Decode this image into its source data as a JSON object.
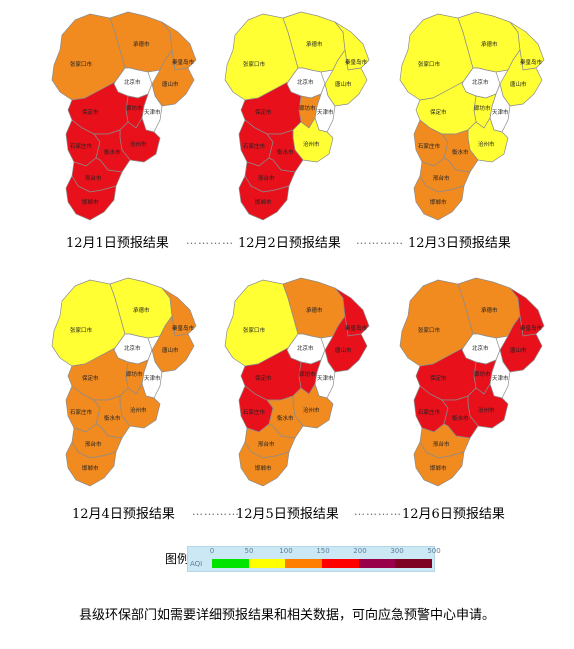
{
  "maps": [
    {
      "label": "12月1日预报结果",
      "colors": {
        "zjk": "#f18a1f",
        "cd": "#f18a1f",
        "qhd": "#f18a1f",
        "ts": "#f18a1f",
        "bj": "#ffffff",
        "tj": "#ffffff",
        "lf": "#e8101a",
        "bd": "#e8101a",
        "cz": "#e8101a",
        "sjz": "#e8101a",
        "hs": "#e8101a",
        "xt": "#e8101a",
        "hd": "#e8101a"
      }
    },
    {
      "label": "12月2日预报结果",
      "colors": {
        "zjk": "#ffff33",
        "cd": "#ffff33",
        "qhd": "#ffff33",
        "ts": "#ffff33",
        "bj": "#ffffff",
        "tj": "#ffffff",
        "lf": "#f18a1f",
        "bd": "#e8101a",
        "cz": "#ffff33",
        "sjz": "#e8101a",
        "hs": "#e8101a",
        "xt": "#e8101a",
        "hd": "#e8101a"
      }
    },
    {
      "label": "12月3日预报结果",
      "colors": {
        "zjk": "#ffff33",
        "cd": "#ffff33",
        "qhd": "#ffff33",
        "ts": "#ffff33",
        "bj": "#ffffff",
        "tj": "#ffffff",
        "lf": "#ffff33",
        "bd": "#ffff33",
        "cz": "#ffff33",
        "sjz": "#f18a1f",
        "hs": "#f18a1f",
        "xt": "#f18a1f",
        "hd": "#f18a1f"
      }
    },
    {
      "label": "12月4日预报结果",
      "colors": {
        "zjk": "#ffff33",
        "cd": "#ffff33",
        "qhd": "#f18a1f",
        "ts": "#f18a1f",
        "bj": "#ffffff",
        "tj": "#ffffff",
        "lf": "#f18a1f",
        "bd": "#f18a1f",
        "cz": "#f18a1f",
        "sjz": "#f18a1f",
        "hs": "#f18a1f",
        "xt": "#f18a1f",
        "hd": "#f18a1f"
      }
    },
    {
      "label": "12月5日预报结果",
      "colors": {
        "zjk": "#ffff33",
        "cd": "#f18a1f",
        "qhd": "#e8101a",
        "ts": "#e8101a",
        "bj": "#ffffff",
        "tj": "#ffffff",
        "lf": "#e8101a",
        "bd": "#e8101a",
        "cz": "#f18a1f",
        "sjz": "#e8101a",
        "hs": "#f18a1f",
        "xt": "#f18a1f",
        "hd": "#f18a1f"
      }
    },
    {
      "label": "12月6日预报结果",
      "colors": {
        "zjk": "#f18a1f",
        "cd": "#f18a1f",
        "qhd": "#e8101a",
        "ts": "#e8101a",
        "bj": "#ffffff",
        "tj": "#ffffff",
        "lf": "#e8101a",
        "bd": "#e8101a",
        "cz": "#e8101a",
        "sjz": "#e8101a",
        "hs": "#e8101a",
        "xt": "#f18a1f",
        "hd": "#f18a1f"
      }
    }
  ],
  "city_names": {
    "zjk": "张家口市",
    "cd": "承德市",
    "bj": "北京市",
    "tj": "天津市",
    "qhd": "秦皇岛市",
    "ts": "唐山市",
    "lf": "廊坊市",
    "bd": "保定市",
    "cz": "沧州市",
    "sjz": "石家庄市",
    "hs": "衡水市",
    "xt": "邢台市",
    "hd": "邯郸市"
  },
  "separator": "…………",
  "legend": {
    "title": "图例",
    "unit": "AQI",
    "ticks": [
      "0",
      "50",
      "100",
      "150",
      "200",
      "300",
      "500"
    ],
    "colors": [
      "#00e400",
      "#ffff00",
      "#ff7e00",
      "#ff0000",
      "#99004c",
      "#7e0023"
    ]
  },
  "note": "县级环保部门如需要详细预报结果和相关数据，可向应急预警中心申请。"
}
